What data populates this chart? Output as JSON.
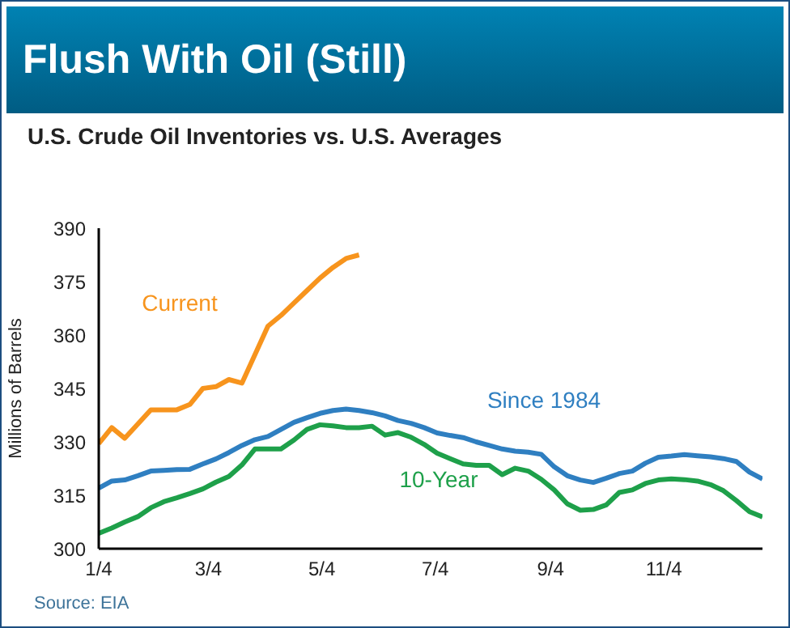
{
  "chart_data": {
    "type": "line",
    "title": "Flush With Oil (Still)",
    "subtitle": "U.S. Crude Oil Inventories vs. U.S. Averages",
    "ylabel": "Millions of Barrels",
    "annotations": [
      "Source: EIA"
    ],
    "x": [
      "--01-04",
      "--01-11",
      "--01-18",
      "--01-25",
      "--02-01",
      "--02-08",
      "--02-15",
      "--02-22",
      "--03-01",
      "--03-08",
      "--03-15",
      "--03-22",
      "--03-29",
      "--04-05",
      "--04-12",
      "--04-19",
      "--04-26",
      "--05-03",
      "--05-10",
      "--05-17",
      "--05-24",
      "--05-31",
      "--06-07",
      "--06-14",
      "--06-21",
      "--06-28",
      "--07-05",
      "--07-12",
      "--07-19",
      "--07-26",
      "--08-02",
      "--08-09",
      "--08-16",
      "--08-23",
      "--08-30",
      "--09-06",
      "--09-13",
      "--09-20",
      "--09-27",
      "--10-04",
      "--10-11",
      "--10-18",
      "--10-25",
      "--11-01",
      "--11-08",
      "--11-15",
      "--11-22",
      "--11-29",
      "--12-06",
      "--12-13",
      "--12-20",
      "--12-27"
    ],
    "series": [
      {
        "name": "Current",
        "color": "#f7941d",
        "values": [
          329.5,
          334,
          331,
          335,
          339,
          339,
          339,
          340.5,
          345,
          345.5,
          347.5,
          346.5,
          354.5,
          362.5,
          365.5,
          369,
          372.5,
          376,
          379,
          381.5,
          382.5,
          null,
          null,
          null,
          null,
          null,
          null,
          null,
          null,
          null,
          null,
          null,
          null,
          null,
          null,
          null,
          null,
          null,
          null,
          null,
          null,
          null,
          null,
          null,
          null,
          null,
          null,
          null,
          null,
          null,
          null,
          null
        ]
      },
      {
        "name": "Since 1984",
        "color": "#2f7fc1",
        "values": [
          317,
          319,
          319.3,
          320.5,
          321.8,
          322,
          322.2,
          322.3,
          323.8,
          325.2,
          327,
          329,
          330.6,
          331.5,
          333.5,
          335.5,
          336.8,
          338,
          338.8,
          339.2,
          338.8,
          338.2,
          337.3,
          336,
          335.2,
          334,
          332.5,
          331.8,
          331.2,
          330,
          329,
          328,
          327.4,
          327.1,
          326.5,
          323,
          320.5,
          319.3,
          318.6,
          319.8,
          321.1,
          321.8,
          324,
          325.7,
          326,
          326.4,
          326.1,
          325.8,
          325.3,
          324.5,
          321.5,
          319.6
        ]
      },
      {
        "name": "10-Year",
        "color": "#1ea04a",
        "values": [
          304.3,
          305.8,
          307.5,
          309,
          311.5,
          313.2,
          314.3,
          315.5,
          316.8,
          318.7,
          320.3,
          323.5,
          328,
          328,
          328,
          330.5,
          333.5,
          334.8,
          334.5,
          334,
          334,
          334.4,
          331.9,
          332.6,
          331.3,
          329.3,
          326.8,
          325.3,
          323.8,
          323.4,
          323.4,
          320.8,
          322.6,
          321.8,
          319.5,
          316.5,
          312.6,
          310.8,
          311,
          312.3,
          315.8,
          316.5,
          318.3,
          319.3,
          319.6,
          319.4,
          319,
          318,
          316.3,
          313.5,
          310.4,
          308.9
        ]
      }
    ],
    "xlim": [
      "--01-04",
      "--12-27"
    ],
    "xticks": [
      {
        "value": "--01-04",
        "label": "1/4"
      },
      {
        "value": "--03-04",
        "label": "3/4"
      },
      {
        "value": "--05-04",
        "label": "5/4"
      },
      {
        "value": "--07-04",
        "label": "7/4"
      },
      {
        "value": "--09-04",
        "label": "9/4"
      },
      {
        "value": "--11-04",
        "label": "11/4"
      }
    ],
    "ylim": [
      300,
      390
    ],
    "yticks": [
      300,
      315,
      330,
      345,
      360,
      375,
      390
    ],
    "grid": false,
    "legend": false,
    "marker": "none",
    "line_style": "solid"
  }
}
